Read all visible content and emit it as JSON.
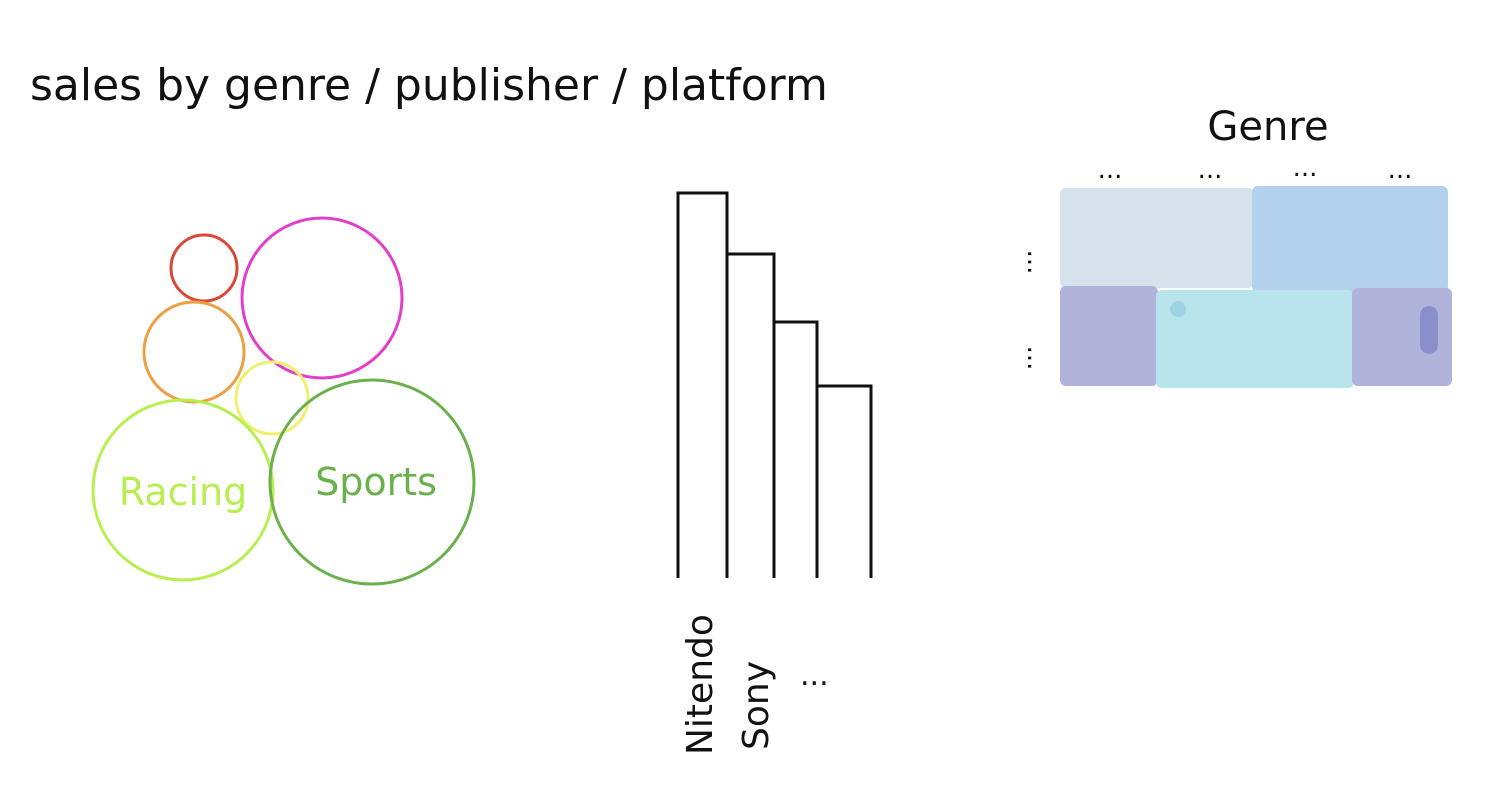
{
  "title": "sales by genre / publisher / platform",
  "bubbles": {
    "labels": [
      "Racing",
      "Sports"
    ]
  },
  "bars": {
    "labels": [
      "Nitendo",
      "Sony",
      "..."
    ]
  },
  "heatmap": {
    "title": "Genre",
    "column_labels": [
      "...",
      "...",
      "...",
      "..."
    ],
    "row_labels": [
      "...",
      "..."
    ]
  }
}
